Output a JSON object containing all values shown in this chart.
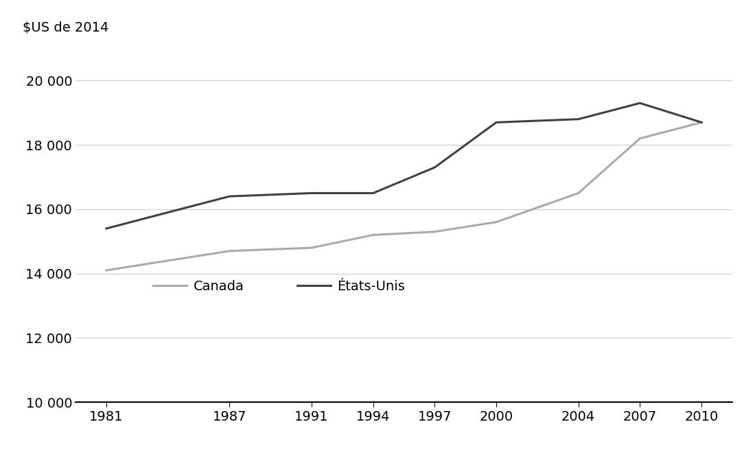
{
  "x_labels": [
    1981,
    1987,
    1991,
    1994,
    1997,
    2000,
    2004,
    2007,
    2010
  ],
  "canada": [
    14100,
    14700,
    14800,
    15200,
    15300,
    15600,
    16500,
    18200,
    18700
  ],
  "etats_unis": [
    15400,
    16400,
    16500,
    16500,
    17300,
    18700,
    18800,
    19300,
    18700
  ],
  "canada_color": "#aaaaaa",
  "etats_unis_color": "#404040",
  "line_width": 2.2,
  "ylabel": "$US de 2014",
  "ylim": [
    10000,
    20800
  ],
  "yticks": [
    10000,
    12000,
    14000,
    16000,
    18000,
    20000
  ],
  "ytick_labels": [
    "10 000",
    "12 000",
    "14 000",
    "16 000",
    "18 000",
    "20 000"
  ],
  "grid_color": "#cccccc",
  "background_color": "#ffffff",
  "legend_canada": "Canada",
  "legend_etats_unis": "États-Unis",
  "legend_fontsize": 14,
  "ylabel_fontsize": 14,
  "tick_fontsize": 14,
  "xlim_left": 1979.5,
  "xlim_right": 2011.5
}
